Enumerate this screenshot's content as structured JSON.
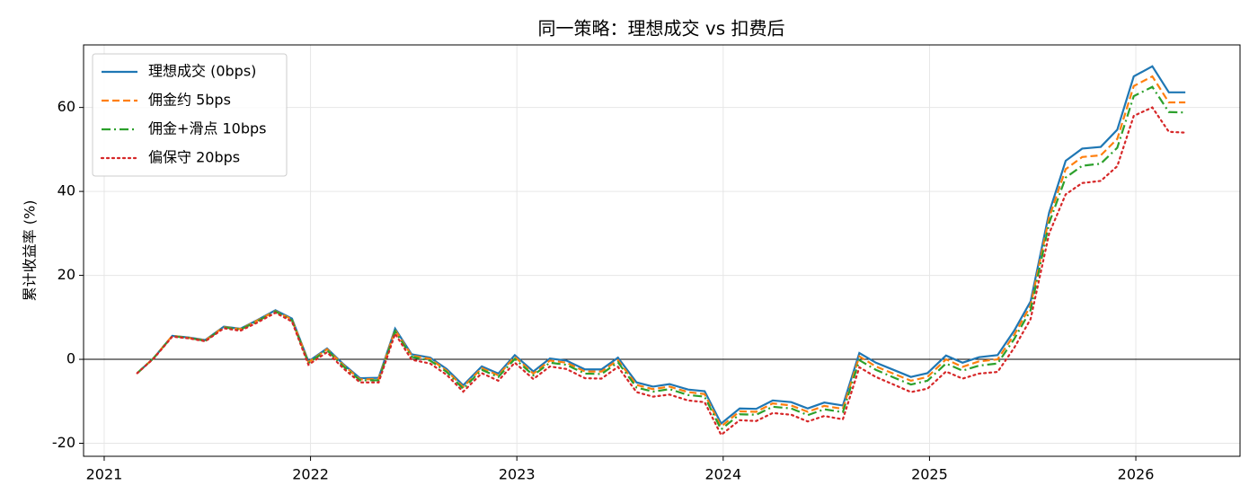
{
  "chart_data": {
    "type": "line",
    "title": "同一策略：理想成交 vs 扣费后",
    "ylabel": "累计收益率 (%)",
    "x": [
      2021.16,
      2021.24,
      2021.33,
      2021.41,
      2021.49,
      2021.58,
      2021.66,
      2021.74,
      2021.83,
      2021.91,
      2021.99,
      2022.08,
      2022.16,
      2022.24,
      2022.33,
      2022.41,
      2022.49,
      2022.58,
      2022.66,
      2022.74,
      2022.83,
      2022.91,
      2022.99,
      2023.08,
      2023.16,
      2023.24,
      2023.33,
      2023.41,
      2023.49,
      2023.58,
      2023.66,
      2023.74,
      2023.83,
      2023.91,
      2023.99,
      2024.08,
      2024.16,
      2024.24,
      2024.33,
      2024.41,
      2024.49,
      2024.58,
      2024.66,
      2024.74,
      2024.83,
      2024.91,
      2024.99,
      2025.08,
      2025.16,
      2025.24,
      2025.33,
      2025.41,
      2025.49,
      2025.58,
      2025.66,
      2025.74,
      2025.83,
      2025.91,
      2025.99,
      2026.08,
      2026.16,
      2026.24
    ],
    "series": [
      {
        "name": "理想成交 (0bps)",
        "color": "#1f77b4",
        "linestyle": "solid",
        "values": [
          -3.3,
          0.3,
          5.6,
          5.2,
          4.6,
          7.8,
          7.3,
          9.3,
          11.7,
          9.7,
          -0.5,
          2.6,
          -1.2,
          -4.5,
          -4.4,
          7.3,
          1.2,
          0.4,
          -2.3,
          -6.2,
          -1.7,
          -3.4,
          1.0,
          -2.9,
          0.2,
          -0.3,
          -2.4,
          -2.4,
          0.4,
          -5.5,
          -6.5,
          -5.9,
          -7.2,
          -7.6,
          -15.3,
          -11.7,
          -11.8,
          -9.8,
          -10.2,
          -11.7,
          -10.3,
          -11.0,
          1.5,
          -0.8,
          -2.6,
          -4.2,
          -3.3,
          0.9,
          -0.8,
          0.5,
          1.0,
          6.8,
          13.8,
          35,
          47.3,
          50.2,
          50.6,
          54.7,
          67.4,
          69.8,
          63.6,
          63.6
        ]
      },
      {
        "name": "佣金约 5bps",
        "color": "#ff7f0e",
        "linestyle": "dashed",
        "values": [
          -3.3,
          0.3,
          5.6,
          5.1,
          4.5,
          7.7,
          7.2,
          9.2,
          11.5,
          9.5,
          -0.7,
          2.4,
          -1.4,
          -4.8,
          -4.7,
          7.0,
          0.9,
          0.1,
          -2.7,
          -6.6,
          -2.1,
          -3.8,
          0.6,
          -3.4,
          -0.3,
          -0.8,
          -2.9,
          -2.9,
          -0.2,
          -6.1,
          -7.1,
          -6.5,
          -7.8,
          -8.3,
          -16.0,
          -12.4,
          -12.5,
          -10.5,
          -11.0,
          -12.5,
          -11.1,
          -11.8,
          0.7,
          -1.7,
          -3.5,
          -5.1,
          -4.2,
          0.0,
          -1.8,
          -0.5,
          0.0,
          5.8,
          12.8,
          33.8,
          45.3,
          48.2,
          48.6,
          52.5,
          65.1,
          67.4,
          61.2,
          61.2
        ]
      },
      {
        "name": "佣金+滑点 10bps",
        "color": "#2ca02c",
        "linestyle": "dashdot",
        "values": [
          -3.3,
          0.3,
          5.5,
          5.1,
          4.4,
          7.6,
          7.1,
          9.0,
          11.4,
          9.3,
          -0.9,
          2.2,
          -1.7,
          -5.0,
          -5.0,
          6.7,
          0.6,
          -0.3,
          -3.0,
          -7.0,
          -2.5,
          -4.2,
          0.1,
          -3.8,
          -0.8,
          -1.3,
          -3.4,
          -3.5,
          -0.7,
          -6.7,
          -7.7,
          -7.1,
          -8.5,
          -8.9,
          -16.7,
          -13.1,
          -13.2,
          -11.3,
          -11.7,
          -13.3,
          -11.9,
          -12.6,
          -0.2,
          -2.5,
          -4.4,
          -6.0,
          -5.1,
          -1.0,
          -2.7,
          -1.5,
          -1.0,
          4.8,
          11.7,
          32.5,
          43.3,
          46.1,
          46.6,
          50.4,
          62.7,
          64.9,
          58.9,
          58.8
        ]
      },
      {
        "name": "偏保守 20bps",
        "color": "#d62728",
        "linestyle": "dotted",
        "values": [
          -3.3,
          0.2,
          5.4,
          5.0,
          4.3,
          7.4,
          6.8,
          8.7,
          11.1,
          9.0,
          -1.3,
          1.7,
          -2.2,
          -5.5,
          -5.5,
          6.1,
          -0.1,
          -1.0,
          -3.7,
          -7.7,
          -3.3,
          -5.1,
          -0.8,
          -4.7,
          -1.7,
          -2.3,
          -4.5,
          -4.6,
          -1.8,
          -7.8,
          -8.9,
          -8.4,
          -9.8,
          -10.2,
          -18.0,
          -14.5,
          -14.7,
          -12.8,
          -13.2,
          -14.8,
          -13.5,
          -14.3,
          -1.9,
          -4.2,
          -6.1,
          -7.8,
          -7.0,
          -2.9,
          -4.6,
          -3.4,
          -3.0,
          2.7,
          9.6,
          30,
          39.3,
          42.0,
          42.5,
          46.0,
          58.0,
          60.0,
          54.2,
          54.0
        ]
      }
    ],
    "xlim": [
      2020.9,
      2026.505
    ],
    "xticks": [
      2021,
      2022,
      2023,
      2024,
      2025,
      2026
    ],
    "ylim": [
      -23.1,
      74.9
    ],
    "yticks": [
      -20,
      0,
      20,
      40,
      60
    ],
    "zero_line": 0,
    "grid": true,
    "legend": "upper left"
  }
}
